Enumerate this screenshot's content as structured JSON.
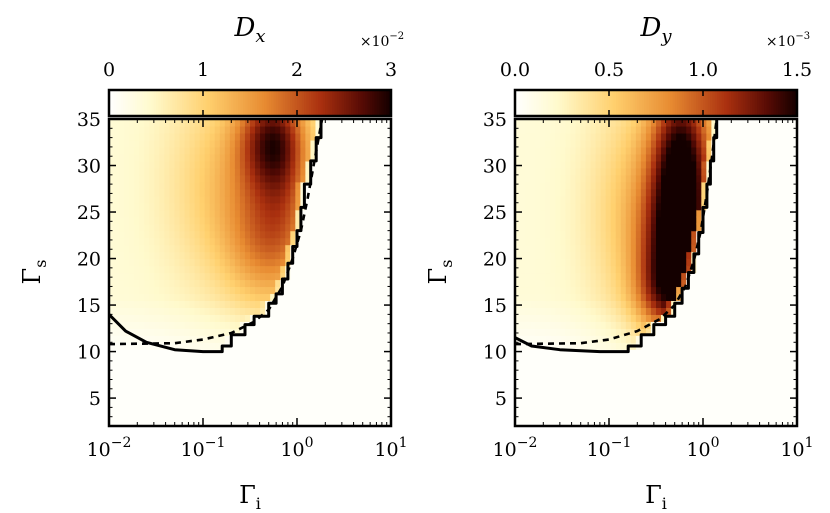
{
  "chart_data": [
    {
      "type": "heatmap",
      "title": "D_x",
      "title_text": "Dx",
      "colorbar": {
        "label_main": "D",
        "label_sub": "x",
        "range": [
          0,
          3
        ],
        "ticks": [
          0,
          1,
          2,
          3
        ],
        "tick_labels": [
          "0",
          "1",
          "2",
          "3"
        ],
        "multiplier_base": "×10",
        "multiplier_exp": "−2",
        "colormap": "afmhot_r"
      },
      "xlabel": "Γi",
      "xlabel_main": "Γ",
      "xlabel_sub": "i",
      "ylabel": "Γs",
      "ylabel_main": "Γ",
      "ylabel_sub": "s",
      "xscale": "log",
      "xlim": [
        0.01,
        10
      ],
      "ylim": [
        2,
        35
      ],
      "xtick_values": [
        0.01,
        0.1,
        1,
        10
      ],
      "xtick_base": [
        "10",
        "10",
        "10",
        "10"
      ],
      "xtick_exp": [
        "−2",
        "−1",
        "0",
        "1"
      ],
      "ytick_values": [
        5,
        10,
        15,
        20,
        25,
        30,
        35
      ],
      "ytick_labels": [
        "5",
        "10",
        "15",
        "20",
        "25",
        "30",
        "35"
      ],
      "blobs": [
        {
          "gi": 0.25,
          "gs": 28,
          "sgi": 0.55,
          "sgs": 9,
          "v": 0.9
        },
        {
          "gi": 0.55,
          "gs": 33,
          "sgi": 0.25,
          "sgs": 4,
          "v": 1.7
        },
        {
          "gi": 0.5,
          "gs": 22,
          "sgi": 0.3,
          "sgs": 5,
          "v": 0.9
        },
        {
          "gi": 0.8,
          "gs": 27,
          "sgi": 0.18,
          "sgs": 6,
          "v": 0.4
        }
      ],
      "solid_boundary": [
        [
          0.01,
          14.0
        ],
        [
          0.015,
          12.2
        ],
        [
          0.025,
          11.0
        ],
        [
          0.05,
          10.2
        ],
        [
          0.1,
          10.0
        ],
        [
          0.16,
          10.0
        ],
        [
          0.16,
          10.6
        ],
        [
          0.2,
          10.6
        ],
        [
          0.2,
          11.8
        ],
        [
          0.28,
          11.8
        ],
        [
          0.28,
          12.9
        ],
        [
          0.35,
          12.9
        ],
        [
          0.35,
          13.8
        ],
        [
          0.5,
          13.8
        ],
        [
          0.5,
          15.2
        ],
        [
          0.6,
          15.2
        ],
        [
          0.6,
          16.2
        ],
        [
          0.7,
          16.2
        ],
        [
          0.7,
          17.8
        ],
        [
          0.8,
          17.8
        ],
        [
          0.8,
          19.5
        ],
        [
          0.9,
          19.5
        ],
        [
          0.9,
          21.3
        ],
        [
          1.0,
          21.3
        ],
        [
          1.0,
          23.0
        ],
        [
          1.1,
          23.0
        ],
        [
          1.1,
          25.5
        ],
        [
          1.2,
          25.5
        ],
        [
          1.2,
          28.0
        ],
        [
          1.4,
          28.0
        ],
        [
          1.4,
          30.5
        ],
        [
          1.6,
          30.5
        ],
        [
          1.6,
          33.0
        ],
        [
          1.8,
          33.0
        ],
        [
          1.8,
          35.0
        ]
      ],
      "dashed_boundary": [
        [
          0.01,
          10.8
        ],
        [
          0.05,
          10.9
        ],
        [
          0.1,
          11.3
        ],
        [
          0.2,
          12.0
        ],
        [
          0.35,
          13.2
        ],
        [
          0.5,
          14.5
        ],
        [
          0.7,
          17.0
        ],
        [
          0.9,
          20.0
        ],
        [
          1.1,
          23.0
        ],
        [
          1.3,
          26.5
        ],
        [
          1.5,
          30.0
        ],
        [
          1.7,
          33.0
        ],
        [
          1.85,
          35.0
        ]
      ]
    },
    {
      "type": "heatmap",
      "title": "D_y",
      "title_text": "Dy",
      "colorbar": {
        "label_main": "D",
        "label_sub": "y",
        "range": [
          0,
          1.5
        ],
        "ticks": [
          0,
          0.5,
          1.0,
          1.5
        ],
        "tick_labels": [
          "0.0",
          "0.5",
          "1.0",
          "1.5"
        ],
        "multiplier_base": "×10",
        "multiplier_exp": "−3",
        "colormap": "afmhot_r"
      },
      "xlabel": "Γi",
      "xlabel_main": "Γ",
      "xlabel_sub": "i",
      "ylabel": "Γs",
      "ylabel_main": "Γ",
      "ylabel_sub": "s",
      "xscale": "log",
      "xlim": [
        0.01,
        10
      ],
      "ylim": [
        2,
        35
      ],
      "xtick_values": [
        0.01,
        0.1,
        1,
        10
      ],
      "xtick_base": [
        "10",
        "10",
        "10",
        "10"
      ],
      "xtick_exp": [
        "−2",
        "−1",
        "0",
        "1"
      ],
      "ytick_values": [
        5,
        10,
        15,
        20,
        25,
        30,
        35
      ],
      "ytick_labels": [
        "5",
        "10",
        "15",
        "20",
        "25",
        "30",
        "35"
      ],
      "blobs": [
        {
          "gi": 0.35,
          "gs": 25,
          "sgi": 0.5,
          "sgs": 10,
          "v": 0.55
        },
        {
          "gi": 0.6,
          "gs": 30,
          "sgi": 0.22,
          "sgs": 7,
          "v": 1.05
        },
        {
          "gi": 0.5,
          "gs": 20,
          "sgi": 0.25,
          "sgs": 5,
          "v": 0.7
        },
        {
          "gi": 0.4,
          "gs": 16,
          "sgi": 0.22,
          "sgs": 3,
          "v": 0.4
        }
      ],
      "solid_boundary": [
        [
          0.01,
          11.5
        ],
        [
          0.015,
          10.6
        ],
        [
          0.03,
          10.2
        ],
        [
          0.08,
          10.0
        ],
        [
          0.16,
          10.0
        ],
        [
          0.16,
          10.6
        ],
        [
          0.22,
          10.6
        ],
        [
          0.22,
          11.8
        ],
        [
          0.3,
          11.8
        ],
        [
          0.3,
          12.9
        ],
        [
          0.4,
          12.9
        ],
        [
          0.4,
          13.8
        ],
        [
          0.5,
          13.8
        ],
        [
          0.5,
          15.2
        ],
        [
          0.6,
          15.2
        ],
        [
          0.6,
          16.8
        ],
        [
          0.7,
          16.8
        ],
        [
          0.7,
          18.5
        ],
        [
          0.8,
          18.5
        ],
        [
          0.8,
          20.5
        ],
        [
          0.9,
          20.5
        ],
        [
          0.9,
          22.8
        ],
        [
          1.0,
          22.8
        ],
        [
          1.0,
          25.5
        ],
        [
          1.1,
          25.5
        ],
        [
          1.1,
          28.0
        ],
        [
          1.2,
          28.0
        ],
        [
          1.2,
          30.5
        ],
        [
          1.3,
          30.5
        ],
        [
          1.3,
          33.0
        ],
        [
          1.4,
          33.0
        ],
        [
          1.4,
          35.0
        ]
      ],
      "dashed_boundary": [
        [
          0.01,
          10.8
        ],
        [
          0.05,
          10.9
        ],
        [
          0.1,
          11.3
        ],
        [
          0.2,
          12.2
        ],
        [
          0.35,
          13.5
        ],
        [
          0.5,
          15.0
        ],
        [
          0.65,
          17.0
        ],
        [
          0.8,
          19.8
        ],
        [
          0.95,
          23.0
        ],
        [
          1.1,
          27.0
        ],
        [
          1.25,
          31.0
        ],
        [
          1.4,
          35.0
        ]
      ]
    }
  ]
}
